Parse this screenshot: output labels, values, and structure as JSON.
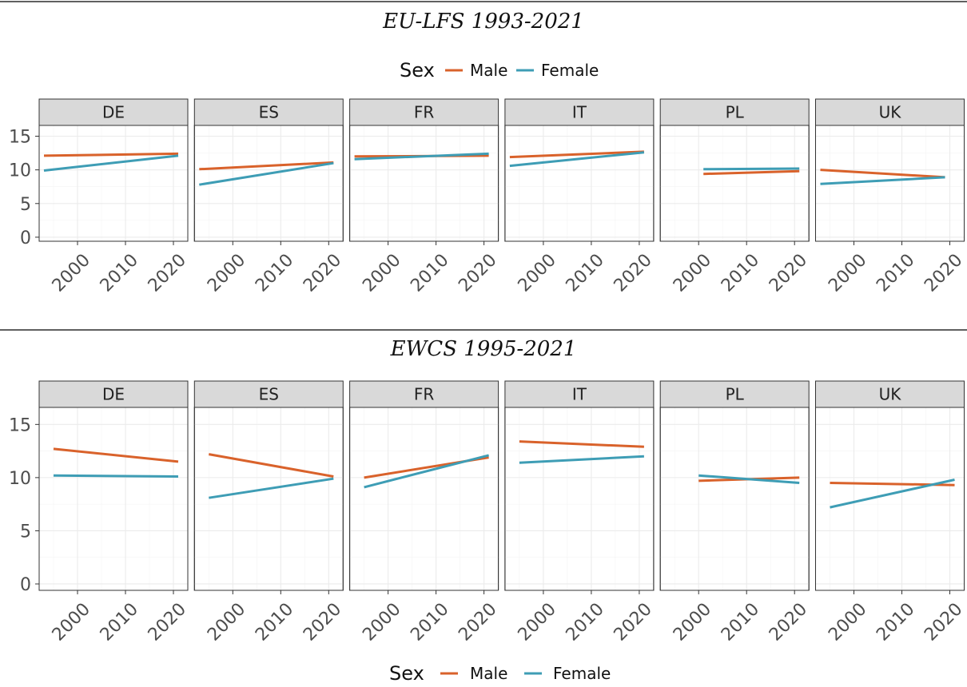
{
  "colors": {
    "male": "#d9622b",
    "female": "#3e9db5"
  },
  "legend": {
    "title": "Sex",
    "male_label": "Male",
    "female_label": "Female"
  },
  "chart_data": [
    {
      "type": "line",
      "title": "EU-LFS 1993-2021",
      "facets": [
        "DE",
        "ES",
        "FR",
        "IT",
        "PL",
        "UK"
      ],
      "xlim": [
        1993,
        2022
      ],
      "ylim": [
        0,
        16
      ],
      "xticks": [
        "2000",
        "2010",
        "2020"
      ],
      "yticks": [
        "0",
        "5",
        "10",
        "15"
      ],
      "grid": true,
      "legend_position": "top",
      "series": [
        {
          "name": "Male",
          "panels": {
            "DE": {
              "x": [
                1993,
                2021
              ],
              "y": [
                12.1,
                12.4
              ]
            },
            "ES": {
              "x": [
                1993,
                2021
              ],
              "y": [
                10.1,
                11.1
              ]
            },
            "FR": {
              "x": [
                1993,
                2021
              ],
              "y": [
                12.0,
                12.1
              ]
            },
            "IT": {
              "x": [
                1993,
                2021
              ],
              "y": [
                11.9,
                12.7
              ]
            },
            "PL": {
              "x": [
                2001,
                2021
              ],
              "y": [
                9.4,
                9.8
              ]
            },
            "UK": {
              "x": [
                1993,
                2019
              ],
              "y": [
                10.0,
                8.9
              ]
            }
          }
        },
        {
          "name": "Female",
          "panels": {
            "DE": {
              "x": [
                1993,
                2021
              ],
              "y": [
                9.9,
                12.1
              ]
            },
            "ES": {
              "x": [
                1993,
                2021
              ],
              "y": [
                7.8,
                11.0
              ]
            },
            "FR": {
              "x": [
                1993,
                2021
              ],
              "y": [
                11.6,
                12.4
              ]
            },
            "IT": {
              "x": [
                1993,
                2021
              ],
              "y": [
                10.6,
                12.6
              ]
            },
            "PL": {
              "x": [
                2001,
                2021
              ],
              "y": [
                10.1,
                10.2
              ]
            },
            "UK": {
              "x": [
                1993,
                2019
              ],
              "y": [
                7.9,
                8.9
              ]
            }
          }
        }
      ]
    },
    {
      "type": "line",
      "title": "EWCS 1995-2021",
      "facets": [
        "DE",
        "ES",
        "FR",
        "IT",
        "PL",
        "UK"
      ],
      "xlim": [
        1993,
        2022
      ],
      "ylim": [
        0,
        16
      ],
      "xticks": [
        "2000",
        "2010",
        "2020"
      ],
      "yticks": [
        "0",
        "5",
        "10",
        "15"
      ],
      "grid": true,
      "legend_position": "bottom",
      "series": [
        {
          "name": "Male",
          "panels": {
            "DE": {
              "x": [
                1995,
                2021
              ],
              "y": [
                12.7,
                11.5
              ]
            },
            "ES": {
              "x": [
                1995,
                2021
              ],
              "y": [
                12.2,
                10.1
              ]
            },
            "FR": {
              "x": [
                1995,
                2021
              ],
              "y": [
                10.0,
                11.9
              ]
            },
            "IT": {
              "x": [
                1995,
                2021
              ],
              "y": [
                13.4,
                12.9
              ]
            },
            "PL": {
              "x": [
                2000,
                2021
              ],
              "y": [
                9.7,
                10.0
              ]
            },
            "UK": {
              "x": [
                1995,
                2021
              ],
              "y": [
                9.5,
                9.3
              ]
            }
          }
        },
        {
          "name": "Female",
          "panels": {
            "DE": {
              "x": [
                1995,
                2021
              ],
              "y": [
                10.2,
                10.1
              ]
            },
            "ES": {
              "x": [
                1995,
                2021
              ],
              "y": [
                8.1,
                9.9
              ]
            },
            "FR": {
              "x": [
                1995,
                2021
              ],
              "y": [
                9.1,
                12.1
              ]
            },
            "IT": {
              "x": [
                1995,
                2021
              ],
              "y": [
                11.4,
                12.0
              ]
            },
            "PL": {
              "x": [
                2000,
                2021
              ],
              "y": [
                10.2,
                9.5
              ]
            },
            "UK": {
              "x": [
                1995,
                2021
              ],
              "y": [
                7.2,
                9.8
              ]
            }
          }
        }
      ]
    }
  ]
}
